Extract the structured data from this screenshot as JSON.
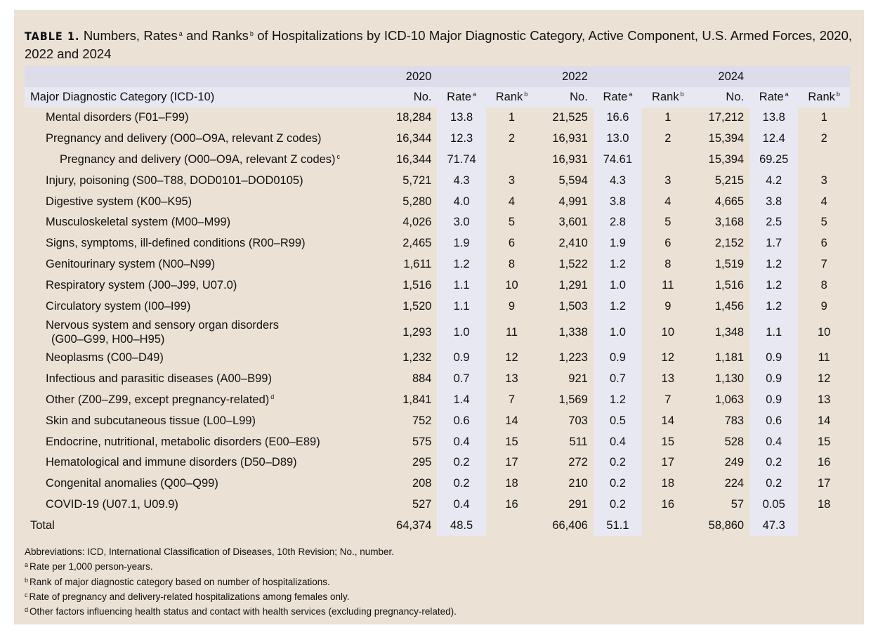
{
  "title": {
    "label": "TABLE 1.",
    "text_1": " Numbers, Rates",
    "sup_a": "a",
    "text_2": " and Ranks",
    "sup_b": "b",
    "text_3": " of Hospitalizations by ICD-10 Major Diagnostic Category, Active Component, U.S. Armed Forces, 2020, 2022 and 2024"
  },
  "header": {
    "years": [
      "2020",
      "2022",
      "2024"
    ],
    "category_label": "Major Diagnostic Category (ICD-10)",
    "no": "No.",
    "rate": "Rate",
    "rank": "Rank",
    "sup_a": "a",
    "sup_b": "b"
  },
  "rows": [
    {
      "label": "Mental disorders (F01–F99)",
      "sup": "",
      "v": [
        "18,284",
        "13.8",
        "1",
        "21,525",
        "16.6",
        "1",
        "17,212",
        "13.8",
        "1"
      ]
    },
    {
      "label": "Pregnancy and delivery (O00–O9A, relevant Z codes)",
      "sup": "",
      "v": [
        "16,344",
        "12.3",
        "2",
        "16,931",
        "13.0",
        "2",
        "15,394",
        "12.4",
        "2"
      ]
    },
    {
      "label": "Pregnancy and delivery (O00–O9A, relevant Z codes)",
      "sup": "c",
      "v": [
        "16,344",
        "71.74",
        "",
        "16,931",
        "74.61",
        "",
        "15,394",
        "69.25",
        ""
      ]
    },
    {
      "label": "Injury, poisoning (S00–T88, DOD0101–DOD0105)",
      "sup": "",
      "v": [
        "5,721",
        "4.3",
        "3",
        "5,594",
        "4.3",
        "3",
        "5,215",
        "4.2",
        "3"
      ]
    },
    {
      "label": "Digestive system (K00–K95)",
      "sup": "",
      "v": [
        "5,280",
        "4.0",
        "4",
        "4,991",
        "3.8",
        "4",
        "4,665",
        "3.8",
        "4"
      ]
    },
    {
      "label": "Musculoskeletal system (M00–M99)",
      "sup": "",
      "v": [
        "4,026",
        "3.0",
        "5",
        "3,601",
        "2.8",
        "5",
        "3,168",
        "2.5",
        "5"
      ]
    },
    {
      "label": "Signs, symptoms, ill-defined conditions (R00–R99)",
      "sup": "",
      "v": [
        "2,465",
        "1.9",
        "6",
        "2,410",
        "1.9",
        "6",
        "2,152",
        "1.7",
        "6"
      ]
    },
    {
      "label": "Genitourinary system (N00–N99)",
      "sup": "",
      "v": [
        "1,611",
        "1.2",
        "8",
        "1,522",
        "1.2",
        "8",
        "1,519",
        "1.2",
        "7"
      ]
    },
    {
      "label": "Respiratory system (J00–J99, U07.0)",
      "sup": "",
      "v": [
        "1,516",
        "1.1",
        "10",
        "1,291",
        "1.0",
        "11",
        "1,516",
        "1.2",
        "8"
      ]
    },
    {
      "label": "Circulatory system (I00–I99)",
      "sup": "",
      "v": [
        "1,520",
        "1.1",
        "9",
        "1,503",
        "1.2",
        "9",
        "1,456",
        "1.2",
        "9"
      ]
    },
    {
      "label": "Nervous system and sensory organ disorders",
      "label2": "(G00–G99, H00–H95)",
      "sup": "",
      "v": [
        "1,293",
        "1.0",
        "11",
        "1,338",
        "1.0",
        "10",
        "1,348",
        "1.1",
        "10"
      ]
    },
    {
      "label": "Neoplasms (C00–D49)",
      "sup": "",
      "v": [
        "1,232",
        "0.9",
        "12",
        "1,223",
        "0.9",
        "12",
        "1,181",
        "0.9",
        "11"
      ]
    },
    {
      "label": "Infectious and parasitic diseases (A00–B99)",
      "sup": "",
      "v": [
        "884",
        "0.7",
        "13",
        "921",
        "0.7",
        "13",
        "1,130",
        "0.9",
        "12"
      ]
    },
    {
      "label": "Other (Z00–Z99, except pregnancy-related)",
      "sup": "d",
      "v": [
        "1,841",
        "1.4",
        "7",
        "1,569",
        "1.2",
        "7",
        "1,063",
        "0.9",
        "13"
      ]
    },
    {
      "label": "Skin and subcutaneous tissue (L00–L99)",
      "sup": "",
      "v": [
        "752",
        "0.6",
        "14",
        "703",
        "0.5",
        "14",
        "783",
        "0.6",
        "14"
      ]
    },
    {
      "label": "Endocrine, nutritional, metabolic disorders (E00–E89)",
      "sup": "",
      "v": [
        "575",
        "0.4",
        "15",
        "511",
        "0.4",
        "15",
        "528",
        "0.4",
        "15"
      ]
    },
    {
      "label": "Hematological and immune disorders (D50–D89)",
      "sup": "",
      "v": [
        "295",
        "0.2",
        "17",
        "272",
        "0.2",
        "17",
        "249",
        "0.2",
        "16"
      ]
    },
    {
      "label": "Congenital anomalies (Q00–Q99)",
      "sup": "",
      "v": [
        "208",
        "0.2",
        "18",
        "210",
        "0.2",
        "18",
        "224",
        "0.2",
        "17"
      ]
    },
    {
      "label": "COVID-19 (U07.1, U09.9)",
      "sup": "",
      "v": [
        "527",
        "0.4",
        "16",
        "291",
        "0.2",
        "16",
        "57",
        "0.05",
        "18"
      ]
    }
  ],
  "total": {
    "label": "Total",
    "v": [
      "64,374",
      "48.5",
      "",
      "66,406",
      "51.1",
      "",
      "58,860",
      "47.3",
      ""
    ]
  },
  "notes": [
    {
      "sup": "",
      "text": "Abbreviations: ICD, International Classification of Diseases, 10th Revision; No., number."
    },
    {
      "sup": "a",
      "text": "Rate per 1,000 person-years."
    },
    {
      "sup": "b",
      "text": "Rank of major diagnostic category based on number of hospitalizations."
    },
    {
      "sup": "c",
      "text": "Rate of pregnancy and delivery-related hospitalizations among females only."
    },
    {
      "sup": "d",
      "text": "Other factors influencing health status and contact with health services (excluding pregnancy-related)."
    }
  ]
}
